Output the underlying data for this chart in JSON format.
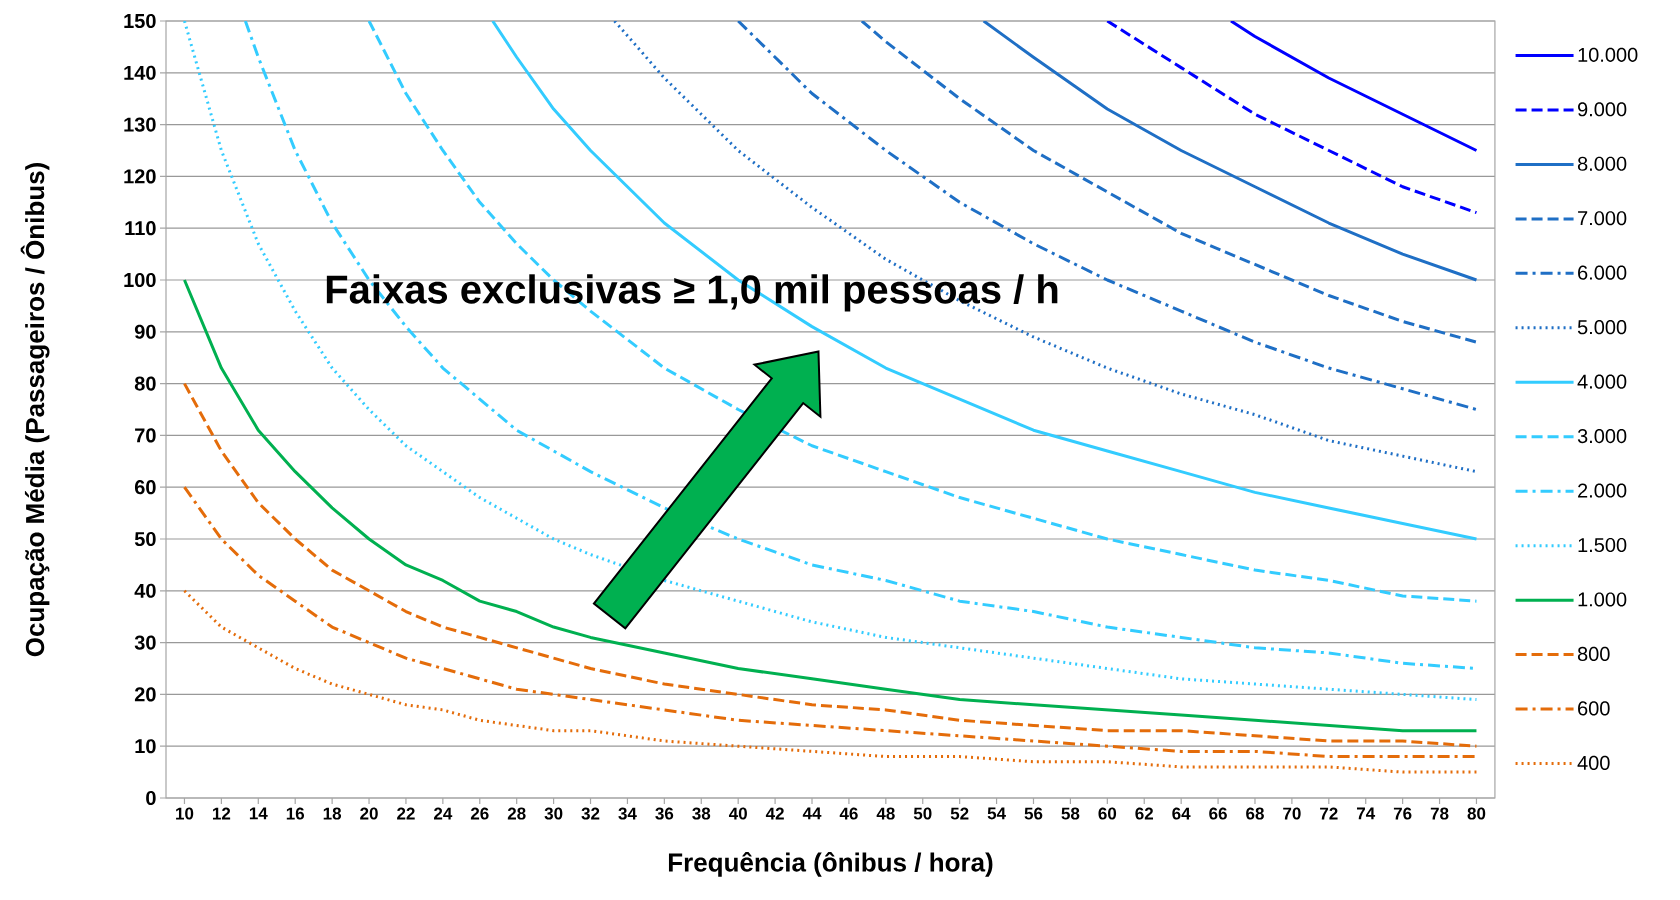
{
  "chart_data": {
    "type": "line",
    "xlabel": "Frequência (ônibus / hora)",
    "ylabel": "Ocupação Média (Passageiros / Ônibus)",
    "annotations": [
      "Faixas exclusivas ≥ 1,0 mil pessoas / h"
    ],
    "xlim": [
      9,
      81
    ],
    "xticks": [
      10,
      12,
      14,
      16,
      18,
      20,
      22,
      24,
      26,
      28,
      30,
      32,
      34,
      36,
      38,
      40,
      42,
      44,
      46,
      48,
      50,
      52,
      54,
      56,
      58,
      60,
      62,
      64,
      66,
      68,
      70,
      72,
      74,
      76,
      78,
      80
    ],
    "ylim": [
      0,
      150
    ],
    "yticks": [
      0,
      10,
      20,
      30,
      40,
      50,
      60,
      70,
      80,
      90,
      100,
      110,
      120,
      130,
      140,
      150
    ],
    "grid": "y",
    "legend": "right",
    "marker": "none",
    "series": [
      {
        "name": "10.000",
        "color": "#0000ff",
        "line_style": "solid",
        "x": [
          66.7,
          68,
          72,
          76,
          80
        ],
        "values": [
          150,
          147,
          139,
          132,
          125
        ]
      },
      {
        "name": "9.000",
        "color": "#0000ff",
        "line_style": "dashed",
        "x": [
          60,
          64,
          68,
          72,
          76,
          80
        ],
        "values": [
          150,
          141,
          132,
          125,
          118,
          113
        ]
      },
      {
        "name": "8.000",
        "color": "#1f6fc5",
        "line_style": "solid",
        "x": [
          53.3,
          56,
          60,
          64,
          68,
          72,
          76,
          80
        ],
        "values": [
          150,
          143,
          133,
          125,
          118,
          111,
          105,
          100
        ]
      },
      {
        "name": "7.000",
        "color": "#1f6fc5",
        "line_style": "dashed",
        "x": [
          46.7,
          48,
          52,
          56,
          60,
          64,
          68,
          72,
          76,
          80
        ],
        "values": [
          150,
          146,
          135,
          125,
          117,
          109,
          103,
          97,
          92,
          88
        ]
      },
      {
        "name": "6.000",
        "color": "#1f6fc5",
        "line_style": "dashdot",
        "x": [
          40,
          44,
          48,
          52,
          56,
          60,
          64,
          68,
          72,
          76,
          80
        ],
        "values": [
          150,
          136,
          125,
          115,
          107,
          100,
          94,
          88,
          83,
          79,
          75
        ]
      },
      {
        "name": "5.000",
        "color": "#1f6fc5",
        "line_style": "dotted",
        "x": [
          33.3,
          36,
          40,
          44,
          48,
          52,
          56,
          60,
          64,
          68,
          72,
          76,
          80
        ],
        "values": [
          150,
          139,
          125,
          114,
          104,
          96,
          89,
          83,
          78,
          74,
          69,
          66,
          63
        ]
      },
      {
        "name": "4.000",
        "color": "#33ccff",
        "line_style": "solid",
        "x": [
          26.7,
          28,
          30,
          32,
          36,
          40,
          44,
          48,
          52,
          56,
          60,
          64,
          68,
          72,
          76,
          80
        ],
        "values": [
          150,
          143,
          133,
          125,
          111,
          100,
          91,
          83,
          77,
          71,
          67,
          63,
          59,
          56,
          53,
          50
        ]
      },
      {
        "name": "3.000",
        "color": "#33ccff",
        "line_style": "dashed",
        "x": [
          20,
          22,
          24,
          26,
          28,
          30,
          32,
          36,
          40,
          44,
          48,
          52,
          56,
          60,
          64,
          68,
          72,
          76,
          80
        ],
        "values": [
          150,
          136,
          125,
          115,
          107,
          100,
          94,
          83,
          75,
          68,
          63,
          58,
          54,
          50,
          47,
          44,
          42,
          39,
          38
        ]
      },
      {
        "name": "2.000",
        "color": "#33ccff",
        "line_style": "dashdot",
        "x": [
          13.3,
          14,
          16,
          18,
          20,
          22,
          24,
          26,
          28,
          30,
          32,
          36,
          40,
          44,
          48,
          52,
          56,
          60,
          64,
          68,
          72,
          76,
          80
        ],
        "values": [
          150,
          143,
          125,
          111,
          100,
          91,
          83,
          77,
          71,
          67,
          63,
          56,
          50,
          45,
          42,
          38,
          36,
          33,
          31,
          29,
          28,
          26,
          25
        ]
      },
      {
        "name": "1.500",
        "color": "#33ccff",
        "line_style": "dotted",
        "x": [
          10,
          12,
          14,
          16,
          18,
          20,
          22,
          24,
          26,
          28,
          30,
          32,
          36,
          40,
          44,
          48,
          52,
          56,
          60,
          64,
          68,
          72,
          76,
          80
        ],
        "values": [
          150,
          125,
          107,
          94,
          83,
          75,
          68,
          63,
          58,
          54,
          50,
          47,
          42,
          38,
          34,
          31,
          29,
          27,
          25,
          23,
          22,
          21,
          20,
          19
        ]
      },
      {
        "name": "1.000",
        "color": "#00b050",
        "line_style": "solid",
        "x": [
          10,
          12,
          14,
          16,
          18,
          20,
          22,
          24,
          26,
          28,
          30,
          32,
          36,
          40,
          44,
          48,
          52,
          56,
          60,
          64,
          68,
          72,
          76,
          80
        ],
        "values": [
          100,
          83,
          71,
          63,
          56,
          50,
          45,
          42,
          38,
          36,
          33,
          31,
          28,
          25,
          23,
          21,
          19,
          18,
          17,
          16,
          15,
          14,
          13,
          13
        ]
      },
      {
        "name": "800",
        "color": "#e46c0a",
        "line_style": "dashed",
        "x": [
          10,
          12,
          14,
          16,
          18,
          20,
          22,
          24,
          26,
          28,
          30,
          32,
          36,
          40,
          44,
          48,
          52,
          56,
          60,
          64,
          68,
          72,
          76,
          80
        ],
        "values": [
          80,
          67,
          57,
          50,
          44,
          40,
          36,
          33,
          31,
          29,
          27,
          25,
          22,
          20,
          18,
          17,
          15,
          14,
          13,
          13,
          12,
          11,
          11,
          10
        ]
      },
      {
        "name": "600",
        "color": "#e46c0a",
        "line_style": "dashdot",
        "x": [
          10,
          12,
          14,
          16,
          18,
          20,
          22,
          24,
          26,
          28,
          30,
          32,
          36,
          40,
          44,
          48,
          52,
          56,
          60,
          64,
          68,
          72,
          76,
          80
        ],
        "values": [
          60,
          50,
          43,
          38,
          33,
          30,
          27,
          25,
          23,
          21,
          20,
          19,
          17,
          15,
          14,
          13,
          12,
          11,
          10,
          9,
          9,
          8,
          8,
          8
        ]
      },
      {
        "name": "400",
        "color": "#e46c0a",
        "line_style": "dotted",
        "x": [
          10,
          12,
          14,
          16,
          18,
          20,
          22,
          24,
          26,
          28,
          30,
          32,
          36,
          40,
          44,
          48,
          52,
          56,
          60,
          64,
          68,
          72,
          76,
          80
        ],
        "values": [
          40,
          33,
          29,
          25,
          22,
          20,
          18,
          17,
          15,
          14,
          13,
          13,
          11,
          10,
          9,
          8,
          8,
          7,
          7,
          6,
          6,
          6,
          5,
          5
        ]
      }
    ]
  }
}
